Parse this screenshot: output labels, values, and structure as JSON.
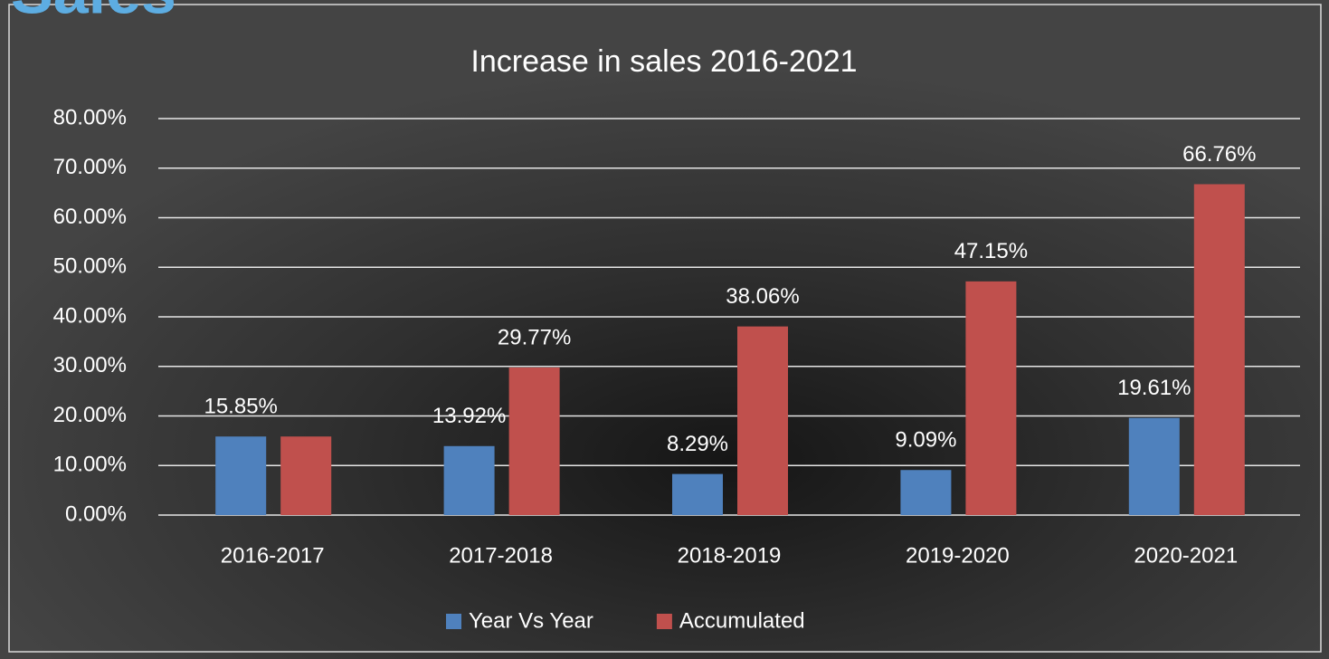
{
  "heading": "Sales",
  "chart_data": {
    "type": "bar",
    "title": "Increase in sales 2016-2021",
    "categories": [
      "2016-2017",
      "2017-2018",
      "2018-2019",
      "2019-2020",
      "2020-2021"
    ],
    "series": [
      {
        "name": "Year Vs Year",
        "color": "#4f81bd",
        "values": [
          15.85,
          13.92,
          8.29,
          9.09,
          19.61
        ],
        "value_labels": [
          "15.85%",
          "13.92%",
          "8.29%",
          "9.09%",
          "19.61%"
        ]
      },
      {
        "name": "Accumulated",
        "color": "#c0504d",
        "values": [
          15.85,
          29.77,
          38.06,
          47.15,
          66.76
        ],
        "value_labels": [
          "",
          "29.77%",
          "38.06%",
          "47.15%",
          "66.76%"
        ]
      }
    ],
    "ylim": [
      0,
      80
    ],
    "yticks": [
      {
        "value": 0,
        "label": "0.00%"
      },
      {
        "value": 10,
        "label": "10.00%"
      },
      {
        "value": 20,
        "label": "20.00%"
      },
      {
        "value": 30,
        "label": "30.00%"
      },
      {
        "value": 40,
        "label": "40.00%"
      },
      {
        "value": 50,
        "label": "50.00%"
      },
      {
        "value": 60,
        "label": "60.00%"
      },
      {
        "value": 70,
        "label": "70.00%"
      },
      {
        "value": 80,
        "label": "80.00%"
      }
    ],
    "grid": true,
    "legend": "bottom"
  }
}
